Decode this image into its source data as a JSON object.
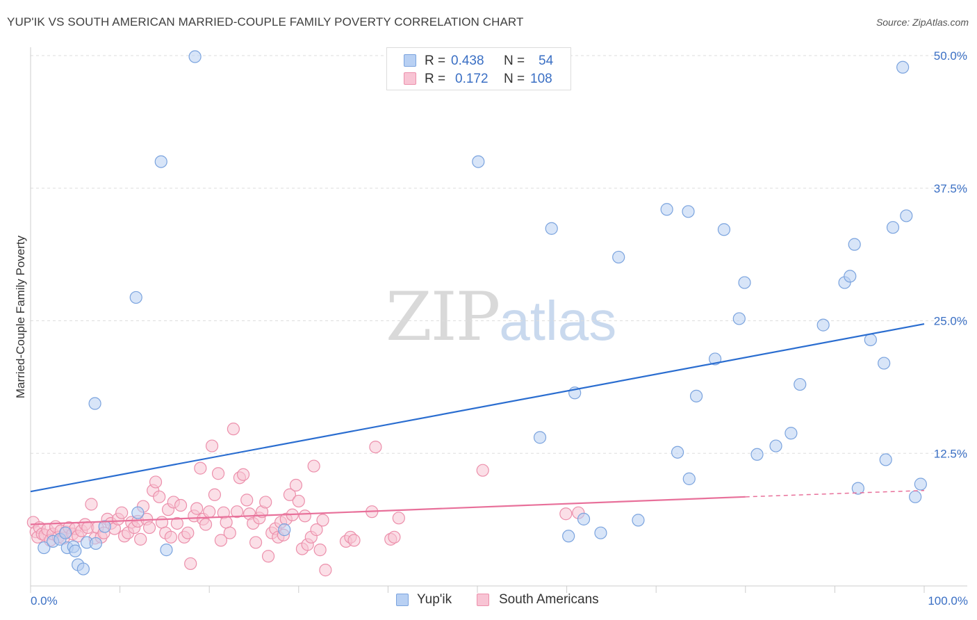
{
  "header": {
    "title": "YUP'IK VS SOUTH AMERICAN MARRIED-COUPLE FAMILY POVERTY CORRELATION CHART",
    "source": "Source: ZipAtlas.com"
  },
  "legend": {
    "series": [
      {
        "r_label": "R =",
        "r_value": "0.438",
        "n_label": "N =",
        "n_value": "54"
      },
      {
        "r_label": "R =",
        "r_value": "0.172",
        "n_label": "N =",
        "n_value": "108"
      }
    ],
    "bottom": [
      {
        "label": "Yup'ik"
      },
      {
        "label": "South Americans"
      }
    ]
  },
  "watermark": {
    "zip": "ZIP",
    "atlas": "atlas"
  },
  "colors": {
    "blue_fill": "#b8d0f3",
    "blue_stroke": "#7aa3de",
    "blue_line": "#2a6dd0",
    "pink_fill": "#f8c4d4",
    "pink_stroke": "#ec8fab",
    "pink_line": "#e8709a",
    "tick_label": "#3a6fc4",
    "grid": "#dddddd"
  },
  "chart_data": {
    "type": "scatter",
    "ylabel": "Married-Couple Family Poverty",
    "xlim": [
      0,
      100
    ],
    "ylim": [
      0,
      50
    ],
    "x_ticks": [
      0,
      10,
      20,
      30,
      40,
      50,
      60,
      70,
      80,
      90,
      100
    ],
    "x_tick_labels": [
      "0.0%",
      "100.0%"
    ],
    "y_ticks": [
      12.5,
      25,
      37.5,
      50
    ],
    "y_tick_labels": [
      "12.5%",
      "25.0%",
      "37.5%",
      "50.0%"
    ],
    "grid": "horizontal dashed",
    "series": [
      {
        "name": "Yup'ik",
        "color": "blue",
        "trend": {
          "x": [
            0,
            100
          ],
          "y": [
            8.9,
            24.7
          ]
        },
        "points": [
          [
            1.5,
            3.6
          ],
          [
            2.5,
            4.2
          ],
          [
            3.3,
            4.4
          ],
          [
            4.1,
            3.6
          ],
          [
            4.8,
            3.7
          ],
          [
            5.0,
            3.3
          ],
          [
            3.9,
            5.0
          ],
          [
            6.3,
            4.1
          ],
          [
            5.3,
            2.0
          ],
          [
            5.9,
            1.6
          ],
          [
            7.3,
            4.0
          ],
          [
            8.3,
            5.6
          ],
          [
            7.2,
            17.2
          ],
          [
            12.0,
            6.9
          ],
          [
            11.8,
            27.2
          ],
          [
            14.6,
            40.0
          ],
          [
            15.2,
            3.4
          ],
          [
            18.4,
            49.9
          ],
          [
            28.4,
            5.3
          ],
          [
            50.1,
            40.0
          ],
          [
            57.0,
            14.0
          ],
          [
            58.3,
            33.7
          ],
          [
            60.2,
            4.7
          ],
          [
            60.9,
            18.2
          ],
          [
            61.9,
            6.3
          ],
          [
            63.8,
            5.0
          ],
          [
            65.8,
            31.0
          ],
          [
            68.0,
            6.2
          ],
          [
            71.2,
            35.5
          ],
          [
            72.4,
            12.6
          ],
          [
            73.6,
            35.3
          ],
          [
            73.7,
            10.1
          ],
          [
            74.5,
            17.9
          ],
          [
            76.6,
            21.4
          ],
          [
            77.6,
            33.6
          ],
          [
            79.3,
            25.2
          ],
          [
            79.9,
            28.6
          ],
          [
            81.3,
            12.4
          ],
          [
            83.4,
            13.2
          ],
          [
            85.1,
            14.4
          ],
          [
            86.1,
            19.0
          ],
          [
            88.7,
            24.6
          ],
          [
            91.1,
            28.6
          ],
          [
            91.7,
            29.2
          ],
          [
            92.2,
            32.2
          ],
          [
            92.6,
            9.2
          ],
          [
            94.0,
            23.2
          ],
          [
            95.5,
            21.0
          ],
          [
            95.7,
            11.9
          ],
          [
            96.5,
            33.8
          ],
          [
            97.6,
            48.9
          ],
          [
            98.0,
            34.9
          ],
          [
            99.0,
            8.4
          ],
          [
            99.6,
            9.6
          ]
        ]
      },
      {
        "name": "South Americans",
        "color": "pink",
        "trend": {
          "x": [
            0,
            80
          ],
          "y": [
            5.8,
            8.4
          ]
        },
        "trend_dashed": {
          "x": [
            80,
            100
          ],
          "y": [
            8.4,
            9.0
          ]
        },
        "points": [
          [
            0.3,
            6.0
          ],
          [
            0.6,
            5.1
          ],
          [
            0.8,
            4.6
          ],
          [
            1.0,
            5.5
          ],
          [
            1.3,
            4.9
          ],
          [
            1.6,
            4.8
          ],
          [
            1.9,
            5.3
          ],
          [
            2.2,
            4.3
          ],
          [
            2.5,
            4.9
          ],
          [
            2.8,
            5.6
          ],
          [
            3.1,
            4.6
          ],
          [
            3.4,
            5.2
          ],
          [
            3.7,
            4.5
          ],
          [
            4.0,
            5.1
          ],
          [
            4.3,
            5.5
          ],
          [
            4.7,
            4.9
          ],
          [
            5.0,
            5.4
          ],
          [
            5.3,
            4.7
          ],
          [
            5.7,
            5.2
          ],
          [
            6.1,
            5.8
          ],
          [
            6.4,
            5.5
          ],
          [
            6.8,
            7.7
          ],
          [
            7.2,
            4.5
          ],
          [
            7.5,
            5.5
          ],
          [
            7.9,
            4.6
          ],
          [
            8.2,
            5.0
          ],
          [
            8.6,
            6.3
          ],
          [
            9.0,
            5.9
          ],
          [
            9.4,
            5.4
          ],
          [
            9.8,
            6.3
          ],
          [
            10.2,
            6.9
          ],
          [
            10.5,
            4.7
          ],
          [
            10.9,
            5.0
          ],
          [
            11.3,
            6.0
          ],
          [
            11.6,
            5.5
          ],
          [
            12.0,
            6.1
          ],
          [
            12.3,
            4.4
          ],
          [
            12.6,
            7.5
          ],
          [
            13.0,
            6.3
          ],
          [
            13.3,
            5.5
          ],
          [
            13.7,
            9.0
          ],
          [
            14.0,
            9.8
          ],
          [
            14.4,
            8.4
          ],
          [
            14.7,
            6.0
          ],
          [
            15.1,
            5.0
          ],
          [
            15.4,
            7.2
          ],
          [
            15.7,
            4.6
          ],
          [
            16.0,
            7.9
          ],
          [
            16.4,
            5.9
          ],
          [
            16.8,
            7.6
          ],
          [
            17.2,
            4.6
          ],
          [
            17.6,
            5.0
          ],
          [
            17.9,
            2.1
          ],
          [
            18.3,
            6.6
          ],
          [
            18.6,
            7.3
          ],
          [
            19.0,
            11.1
          ],
          [
            19.3,
            6.3
          ],
          [
            19.6,
            5.8
          ],
          [
            20.0,
            7.0
          ],
          [
            20.3,
            13.2
          ],
          [
            20.6,
            8.6
          ],
          [
            21.0,
            10.6
          ],
          [
            21.3,
            4.3
          ],
          [
            21.6,
            6.9
          ],
          [
            21.9,
            6.0
          ],
          [
            22.3,
            5.0
          ],
          [
            22.7,
            14.8
          ],
          [
            23.1,
            7.0
          ],
          [
            23.4,
            10.2
          ],
          [
            23.8,
            10.5
          ],
          [
            24.2,
            8.1
          ],
          [
            24.5,
            6.8
          ],
          [
            24.9,
            5.9
          ],
          [
            25.2,
            4.1
          ],
          [
            25.6,
            6.4
          ],
          [
            25.9,
            7.0
          ],
          [
            26.3,
            7.9
          ],
          [
            26.6,
            2.8
          ],
          [
            27.0,
            5.0
          ],
          [
            27.4,
            5.4
          ],
          [
            27.7,
            4.6
          ],
          [
            28.0,
            6.0
          ],
          [
            28.3,
            4.8
          ],
          [
            28.6,
            6.3
          ],
          [
            29.0,
            8.6
          ],
          [
            29.3,
            6.7
          ],
          [
            29.7,
            9.5
          ],
          [
            30.0,
            8.0
          ],
          [
            30.4,
            3.5
          ],
          [
            30.7,
            6.6
          ],
          [
            31.0,
            3.9
          ],
          [
            31.4,
            4.6
          ],
          [
            31.7,
            11.3
          ],
          [
            32.0,
            5.3
          ],
          [
            32.4,
            3.4
          ],
          [
            32.7,
            6.2
          ],
          [
            33.0,
            1.5
          ],
          [
            35.3,
            4.2
          ],
          [
            35.8,
            4.6
          ],
          [
            36.2,
            4.3
          ],
          [
            38.2,
            7.0
          ],
          [
            38.6,
            13.1
          ],
          [
            40.3,
            4.4
          ],
          [
            40.7,
            4.6
          ],
          [
            41.2,
            6.4
          ],
          [
            50.6,
            10.9
          ],
          [
            59.9,
            6.8
          ],
          [
            61.3,
            6.9
          ]
        ]
      }
    ]
  }
}
